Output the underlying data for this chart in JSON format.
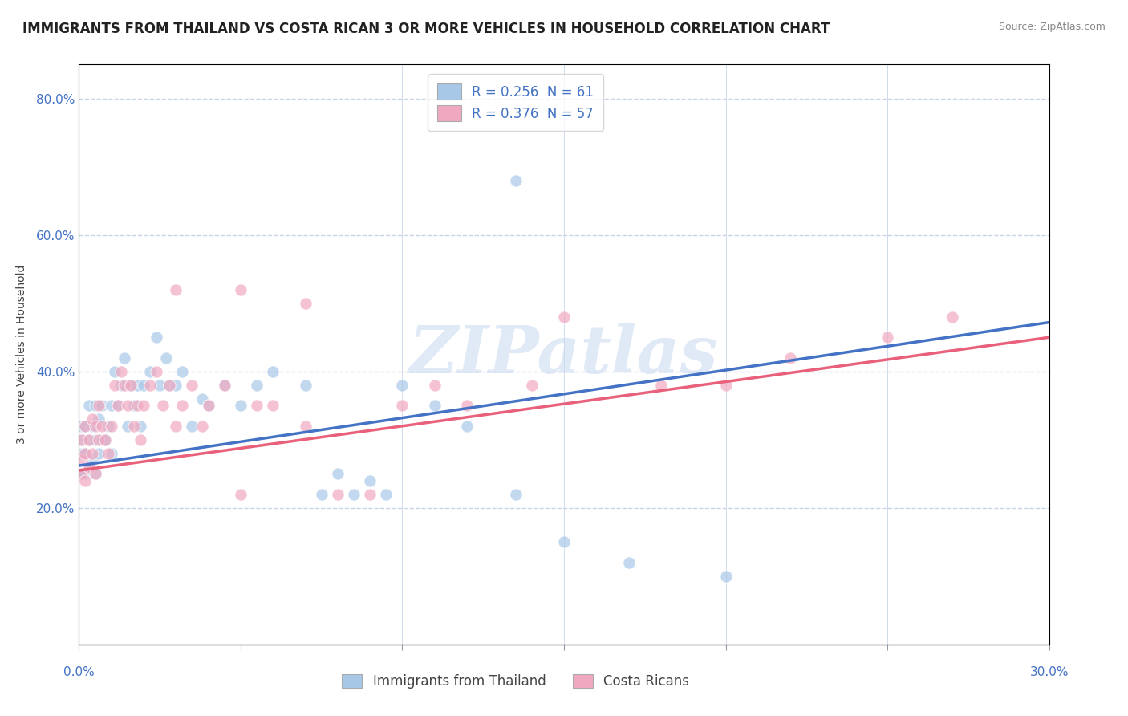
{
  "title": "IMMIGRANTS FROM THAILAND VS COSTA RICAN 3 OR MORE VEHICLES IN HOUSEHOLD CORRELATION CHART",
  "source": "Source: ZipAtlas.com",
  "ylabel_label": "3 or more Vehicles in Household",
  "legend_1": "R = 0.256  N = 61",
  "legend_2": "R = 0.376  N = 57",
  "color_blue": "#a8c8e8",
  "color_pink": "#f0a8c0",
  "trend_blue": "#4472c4",
  "trend_pink": "#e8607a",
  "watermark": "ZIPatlas",
  "watermark_color": "#c8d8f0",
  "xlim": [
    0.0,
    0.3
  ],
  "ylim": [
    0.0,
    0.85
  ],
  "xtick_positions": [
    0.0,
    0.05,
    0.1,
    0.15,
    0.2,
    0.25,
    0.3
  ],
  "ytick_positions": [
    0.0,
    0.2,
    0.4,
    0.6,
    0.8
  ],
  "background_color": "#ffffff",
  "grid_color": "#c8d4e8",
  "title_fontsize": 12,
  "axis_label_fontsize": 10,
  "tick_fontsize": 11,
  "legend_fontsize": 12,
  "source_fontsize": 9,
  "blue_x": [
    0.001,
    0.001,
    0.001,
    0.001,
    0.002,
    0.002,
    0.002,
    0.003,
    0.003,
    0.003,
    0.004,
    0.004,
    0.005,
    0.005,
    0.005,
    0.006,
    0.006,
    0.007,
    0.007,
    0.008,
    0.009,
    0.01,
    0.01,
    0.011,
    0.012,
    0.013,
    0.014,
    0.015,
    0.016,
    0.017,
    0.018,
    0.019,
    0.02,
    0.022,
    0.024,
    0.025,
    0.027,
    0.028,
    0.03,
    0.032,
    0.035,
    0.038,
    0.04,
    0.045,
    0.05,
    0.055,
    0.06,
    0.07,
    0.075,
    0.08,
    0.085,
    0.09,
    0.095,
    0.1,
    0.11,
    0.12,
    0.135,
    0.15,
    0.17,
    0.2,
    0.135
  ],
  "blue_y": [
    0.25,
    0.28,
    0.3,
    0.32,
    0.25,
    0.28,
    0.32,
    0.26,
    0.3,
    0.35,
    0.27,
    0.32,
    0.25,
    0.3,
    0.35,
    0.28,
    0.33,
    0.3,
    0.35,
    0.3,
    0.32,
    0.28,
    0.35,
    0.4,
    0.35,
    0.38,
    0.42,
    0.32,
    0.38,
    0.35,
    0.38,
    0.32,
    0.38,
    0.4,
    0.45,
    0.38,
    0.42,
    0.38,
    0.38,
    0.4,
    0.32,
    0.36,
    0.35,
    0.38,
    0.35,
    0.38,
    0.4,
    0.38,
    0.22,
    0.25,
    0.22,
    0.24,
    0.22,
    0.38,
    0.35,
    0.32,
    0.22,
    0.15,
    0.12,
    0.1,
    0.68
  ],
  "pink_x": [
    0.001,
    0.001,
    0.001,
    0.002,
    0.002,
    0.002,
    0.003,
    0.003,
    0.004,
    0.004,
    0.005,
    0.005,
    0.006,
    0.006,
    0.007,
    0.008,
    0.009,
    0.01,
    0.011,
    0.012,
    0.013,
    0.014,
    0.015,
    0.016,
    0.017,
    0.018,
    0.019,
    0.02,
    0.022,
    0.024,
    0.026,
    0.028,
    0.03,
    0.032,
    0.035,
    0.038,
    0.04,
    0.045,
    0.05,
    0.055,
    0.06,
    0.07,
    0.08,
    0.09,
    0.1,
    0.11,
    0.12,
    0.14,
    0.15,
    0.18,
    0.2,
    0.22,
    0.25,
    0.27,
    0.03,
    0.05,
    0.07
  ],
  "pink_y": [
    0.25,
    0.27,
    0.3,
    0.24,
    0.28,
    0.32,
    0.26,
    0.3,
    0.28,
    0.33,
    0.25,
    0.32,
    0.3,
    0.35,
    0.32,
    0.3,
    0.28,
    0.32,
    0.38,
    0.35,
    0.4,
    0.38,
    0.35,
    0.38,
    0.32,
    0.35,
    0.3,
    0.35,
    0.38,
    0.4,
    0.35,
    0.38,
    0.32,
    0.35,
    0.38,
    0.32,
    0.35,
    0.38,
    0.22,
    0.35,
    0.35,
    0.32,
    0.22,
    0.22,
    0.35,
    0.38,
    0.35,
    0.38,
    0.48,
    0.38,
    0.38,
    0.42,
    0.45,
    0.48,
    0.52,
    0.52,
    0.5
  ]
}
